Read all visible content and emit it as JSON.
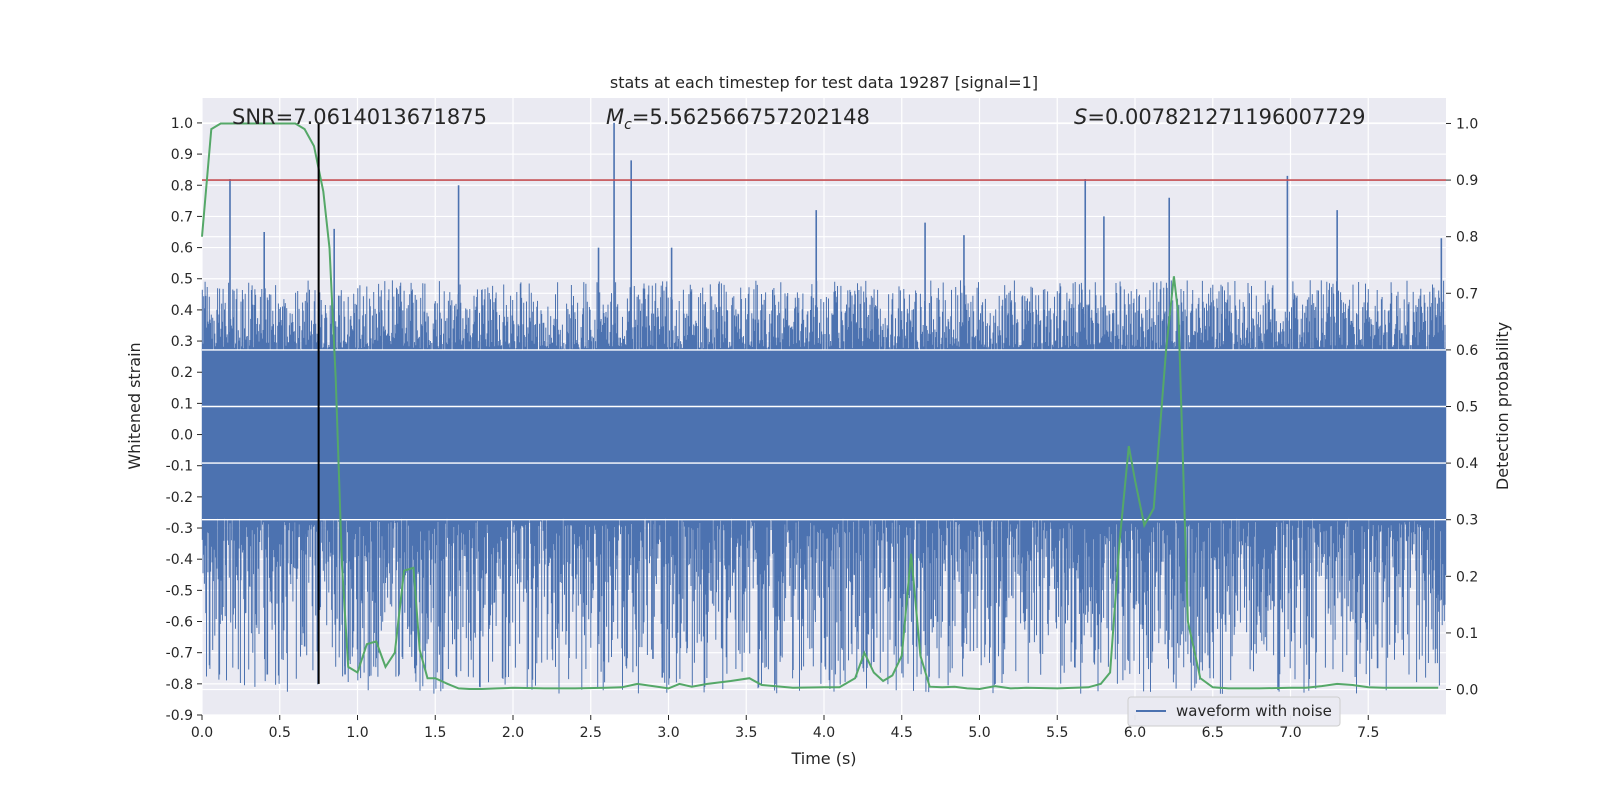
{
  "chart_data": {
    "type": "line",
    "title": "stats at each timestep for test data 19287 [signal=1]",
    "xlabel": "Time (s)",
    "ylabel": "Whitened strain",
    "ylabel_right": "Detection probability",
    "xlim": [
      0,
      8
    ],
    "ylim": [
      -0.9,
      1.08
    ],
    "ylim_right": [
      -0.045,
      1.045
    ],
    "x_ticks": [
      "0.0",
      "0.5",
      "1.0",
      "1.5",
      "2.0",
      "2.5",
      "3.0",
      "3.5",
      "4.0",
      "4.5",
      "5.0",
      "5.5",
      "6.0",
      "6.5",
      "7.0",
      "7.5"
    ],
    "y_ticks": [
      "1.0",
      "0.9",
      "0.8",
      "0.7",
      "0.6",
      "0.5",
      "0.4",
      "0.3",
      "0.2",
      "0.1",
      "0.0",
      "-0.1",
      "-0.2",
      "-0.3",
      "-0.4",
      "-0.5",
      "-0.6",
      "-0.7",
      "-0.8",
      "-0.9"
    ],
    "y_ticks_right": [
      "1.0",
      "0.9",
      "0.8",
      "0.7",
      "0.6",
      "0.5",
      "0.4",
      "0.3",
      "0.2",
      "0.1",
      "0.0"
    ],
    "grid": true,
    "legend": {
      "placement": "lower-right",
      "entries": [
        "waveform with noise"
      ]
    },
    "annotations": {
      "snr": "SNR=7.0614013671875",
      "mc_prefix": "M",
      "mc_sub": "c",
      "mc_value": "=5.562566757202148",
      "s_prefix": "S",
      "s_value": "=0.007821271196007729"
    },
    "threshold_line": {
      "axis": "right",
      "y": 0.9,
      "color": "#c44e52"
    },
    "vertical_marker": {
      "x": 0.75,
      "color": "#000000"
    },
    "waveform_envelope": {
      "name": "waveform with noise",
      "color": "#4c72b0",
      "dense_band": [
        -0.27,
        0.27
      ],
      "typical_peaks": [
        -0.45,
        0.45
      ],
      "spikes": [
        {
          "x": 0.18,
          "y": 0.82
        },
        {
          "x": 0.4,
          "y": 0.65
        },
        {
          "x": 0.42,
          "y": -0.77
        },
        {
          "x": 0.66,
          "y": -0.68
        },
        {
          "x": 0.85,
          "y": 0.66
        },
        {
          "x": 0.92,
          "y": -0.77
        },
        {
          "x": 1.65,
          "y": 0.8
        },
        {
          "x": 2.65,
          "y": 1.0
        },
        {
          "x": 2.76,
          "y": 0.88
        },
        {
          "x": 2.55,
          "y": 0.6
        },
        {
          "x": 2.9,
          "y": -0.72
        },
        {
          "x": 2.96,
          "y": -0.78
        },
        {
          "x": 3.02,
          "y": 0.6
        },
        {
          "x": 3.95,
          "y": 0.72
        },
        {
          "x": 4.32,
          "y": -0.73
        },
        {
          "x": 4.65,
          "y": 0.68
        },
        {
          "x": 4.9,
          "y": 0.64
        },
        {
          "x": 5.1,
          "y": -0.8
        },
        {
          "x": 5.68,
          "y": 0.82
        },
        {
          "x": 5.8,
          "y": 0.7
        },
        {
          "x": 6.22,
          "y": 0.76
        },
        {
          "x": 6.98,
          "y": 0.83
        },
        {
          "x": 6.92,
          "y": -0.82
        },
        {
          "x": 7.3,
          "y": 0.72
        },
        {
          "x": 7.56,
          "y": -0.75
        },
        {
          "x": 7.97,
          "y": 0.63
        }
      ]
    },
    "series": [
      {
        "axis": "right",
        "color": "#55a868",
        "x": [
          0.0,
          0.06,
          0.12,
          0.2,
          0.3,
          0.4,
          0.5,
          0.6,
          0.66,
          0.72,
          0.78,
          0.82,
          0.86,
          0.9,
          0.94,
          1.0,
          1.06,
          1.12,
          1.18,
          1.24,
          1.3,
          1.36,
          1.4,
          1.45,
          1.5,
          1.58,
          1.65,
          1.72,
          1.8,
          1.9,
          2.0,
          2.2,
          2.4,
          2.6,
          2.7,
          2.8,
          2.9,
          3.0,
          3.07,
          3.15,
          3.25,
          3.4,
          3.52,
          3.6,
          3.8,
          4.0,
          4.1,
          4.2,
          4.26,
          4.32,
          4.38,
          4.44,
          4.5,
          4.56,
          4.62,
          4.68,
          4.76,
          4.84,
          4.92,
          5.0,
          5.1,
          5.2,
          5.3,
          5.5,
          5.7,
          5.78,
          5.84,
          5.9,
          5.96,
          6.0,
          6.06,
          6.12,
          6.2,
          6.25,
          6.28,
          6.34,
          6.42,
          6.5,
          6.6,
          6.8,
          7.0,
          7.1,
          7.2,
          7.3,
          7.4,
          7.5,
          7.6,
          7.8,
          7.95
        ],
        "values": [
          0.8,
          0.99,
          1.0,
          1.0,
          1.0,
          1.0,
          1.0,
          1.0,
          0.99,
          0.96,
          0.88,
          0.78,
          0.55,
          0.22,
          0.04,
          0.03,
          0.08,
          0.085,
          0.04,
          0.065,
          0.21,
          0.215,
          0.07,
          0.02,
          0.02,
          0.01,
          0.002,
          0.001,
          0.001,
          0.002,
          0.003,
          0.002,
          0.002,
          0.003,
          0.004,
          0.01,
          0.006,
          0.002,
          0.01,
          0.005,
          0.01,
          0.015,
          0.02,
          0.008,
          0.003,
          0.004,
          0.004,
          0.02,
          0.065,
          0.03,
          0.015,
          0.025,
          0.06,
          0.24,
          0.06,
          0.005,
          0.004,
          0.005,
          0.002,
          0.001,
          0.006,
          0.002,
          0.003,
          0.002,
          0.004,
          0.01,
          0.03,
          0.26,
          0.43,
          0.37,
          0.29,
          0.32,
          0.6,
          0.73,
          0.66,
          0.12,
          0.02,
          0.004,
          0.002,
          0.002,
          0.003,
          0.003,
          0.006,
          0.01,
          0.008,
          0.004,
          0.003,
          0.003,
          0.003
        ]
      }
    ]
  }
}
